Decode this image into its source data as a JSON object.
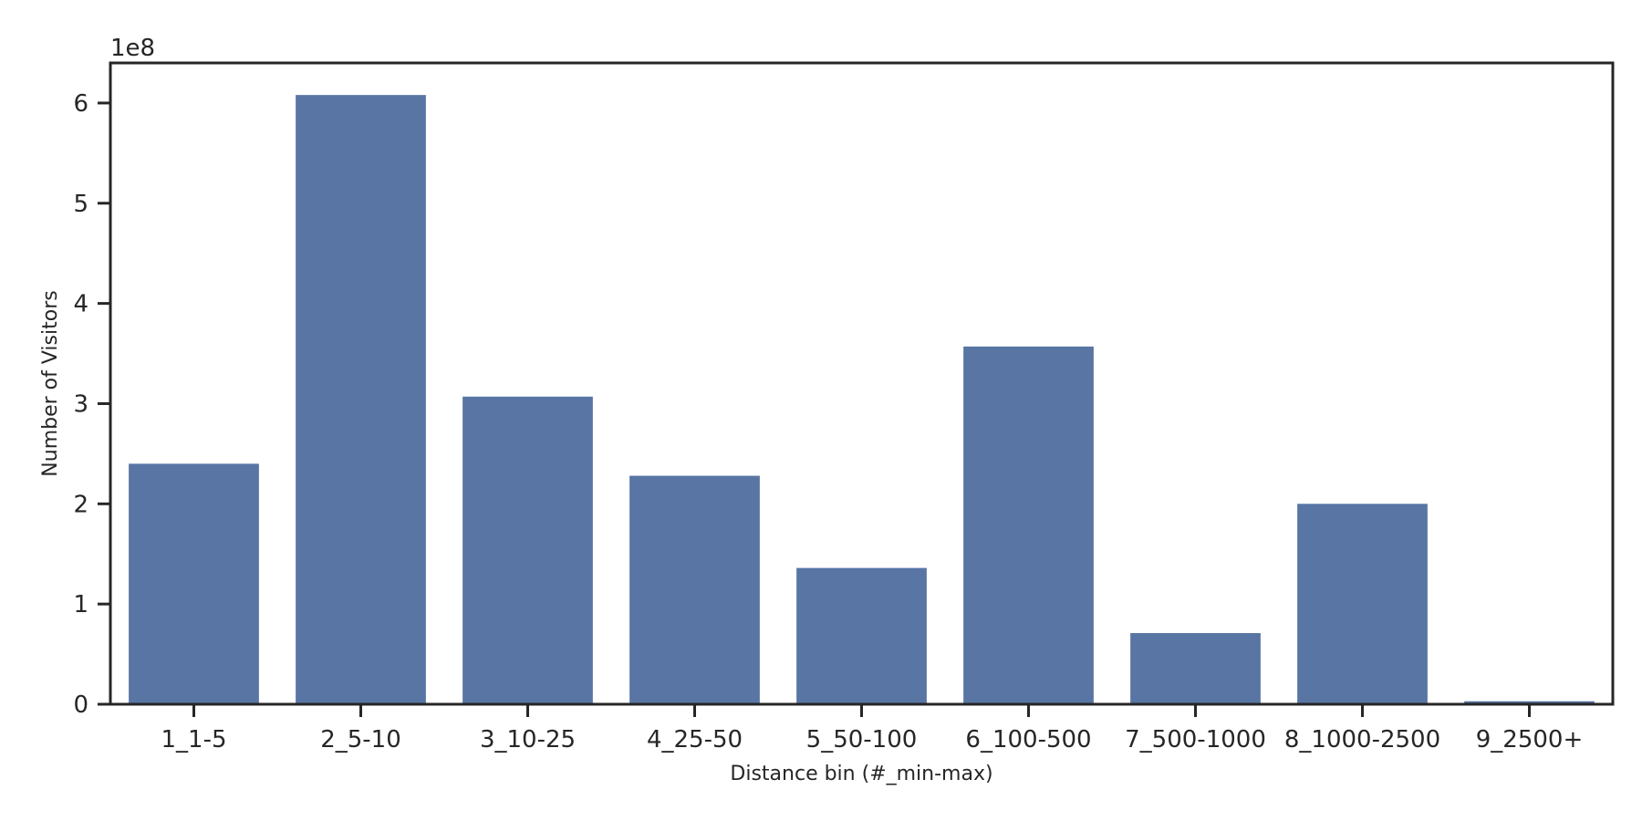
{
  "chart_data": {
    "type": "bar",
    "categories": [
      "1_1-5",
      "2_5-10",
      "3_10-25",
      "4_25-50",
      "5_50-100",
      "6_100-500",
      "7_500-1000",
      "8_1000-2500",
      "9_2500+"
    ],
    "values": [
      240000000,
      608000000,
      307000000,
      228000000,
      136000000,
      357000000,
      71000000,
      200000000,
      3000000
    ],
    "title": "",
    "xlabel": "Distance bin (#_min-max)",
    "ylabel": "Number of Visitors",
    "offset_label": "1e8",
    "ylim": [
      0,
      640000000
    ],
    "yticks": [
      0,
      1,
      2,
      3,
      4,
      5,
      6
    ],
    "ytick_scale": 100000000,
    "grid": false,
    "legend": "none",
    "bar_color": "#5875a4",
    "axis_color": "#262626"
  }
}
